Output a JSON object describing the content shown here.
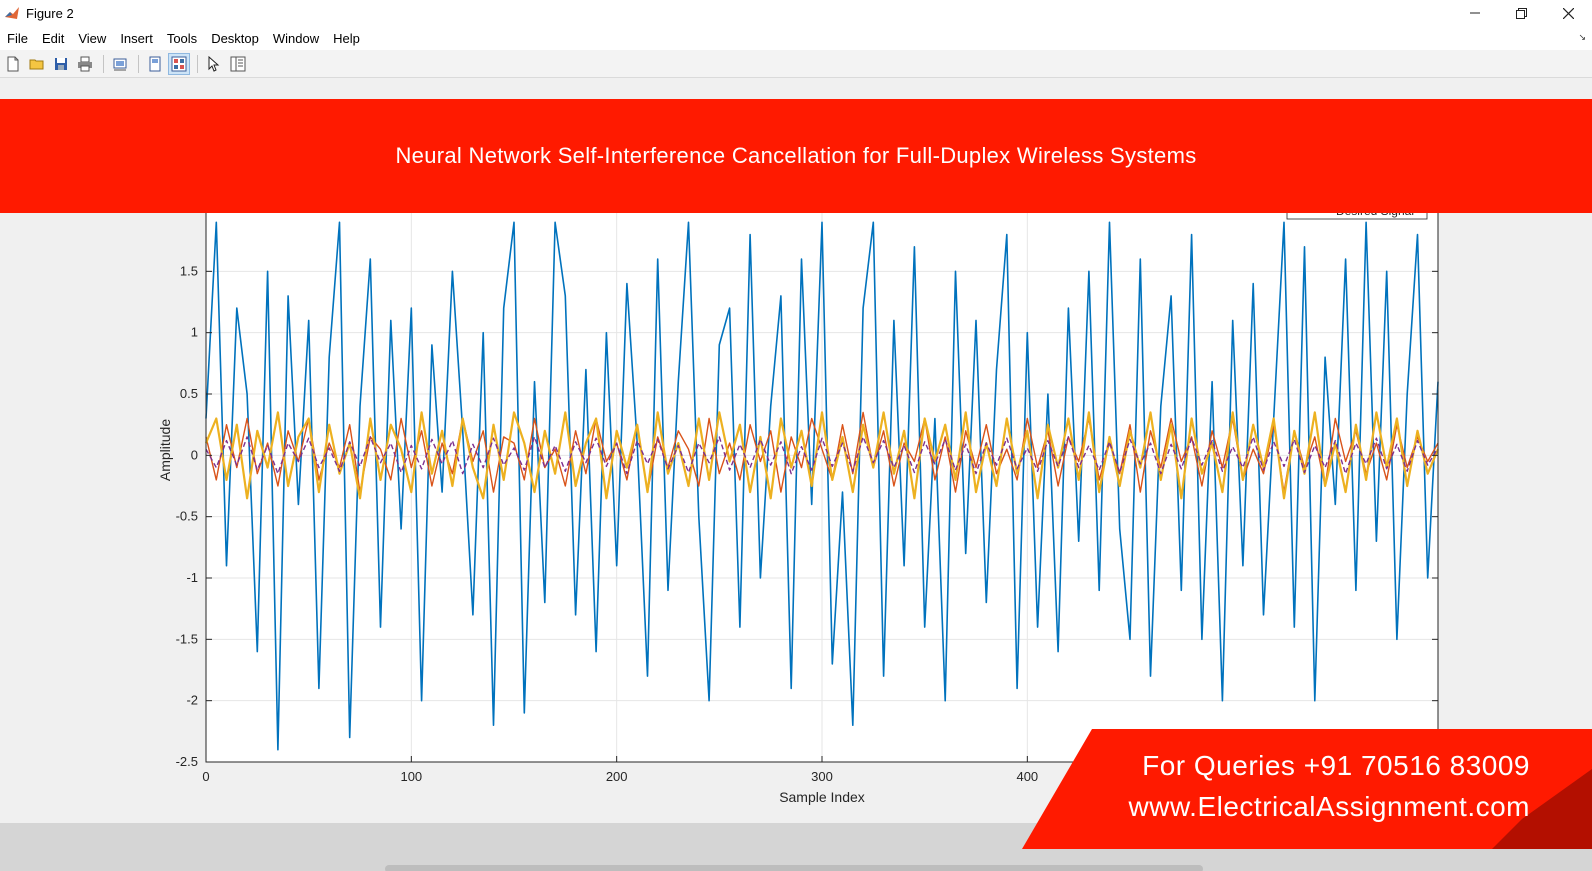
{
  "window": {
    "title": "Figure 2"
  },
  "menu": [
    "File",
    "Edit",
    "View",
    "Insert",
    "Tools",
    "Desktop",
    "Window",
    "Help"
  ],
  "toolbar": [
    "new-figure",
    "open-file",
    "save",
    "print",
    "print-preview",
    "dock-figure",
    "property-inspector",
    "edit-plot-arrow",
    "plot-browser"
  ],
  "banner": {
    "title": "Neural Network Self-Interference Cancellation for Full-Duplex Wireless Systems"
  },
  "legend": {
    "visible_entry": "Desired Signal"
  },
  "contact": {
    "phone": "For Queries +91 70516 83009",
    "website": "www.ElectricalAssignment.com"
  },
  "colors": {
    "banner": "#ff1a00",
    "series1": "#0072bd",
    "series2": "#d95319",
    "series3": "#edb120",
    "series4": "#7e2f8e"
  },
  "chart_data": {
    "type": "line",
    "title": "",
    "xlabel": "Sample Index",
    "ylabel": "Amplitude",
    "xlim": [
      0,
      600
    ],
    "ylim": [
      -2.5,
      2
    ],
    "xticks": [
      0,
      100,
      200,
      300,
      400
    ],
    "yticks": [
      -2.5,
      -2,
      -1.5,
      -1,
      -0.5,
      0,
      0.5,
      1,
      1.5
    ],
    "x": [
      0,
      5,
      10,
      15,
      20,
      25,
      30,
      35,
      40,
      45,
      50,
      55,
      60,
      65,
      70,
      75,
      80,
      85,
      90,
      95,
      100,
      105,
      110,
      115,
      120,
      125,
      130,
      135,
      140,
      145,
      150,
      155,
      160,
      165,
      170,
      175,
      180,
      185,
      190,
      195,
      200,
      205,
      210,
      215,
      220,
      225,
      230,
      235,
      240,
      245,
      250,
      255,
      260,
      265,
      270,
      275,
      280,
      285,
      290,
      295,
      300,
      305,
      310,
      315,
      320,
      325,
      330,
      335,
      340,
      345,
      350,
      355,
      360,
      365,
      370,
      375,
      380,
      385,
      390,
      395,
      400,
      405,
      410,
      415,
      420,
      425,
      430,
      435,
      440,
      445,
      450,
      455,
      460,
      465,
      470,
      475,
      480,
      485,
      490,
      495,
      500,
      505,
      510,
      515,
      520,
      525,
      530,
      535,
      540,
      545,
      550,
      555,
      560,
      565,
      570,
      575,
      580,
      585,
      590,
      595,
      600
    ],
    "series": [
      {
        "name": "Desired Signal",
        "values": [
          0.3,
          1.9,
          -0.9,
          1.2,
          0.5,
          -1.6,
          1.5,
          -2.4,
          1.3,
          -0.4,
          1.1,
          -1.9,
          0.8,
          1.9,
          -2.3,
          0.4,
          1.6,
          -1.4,
          1.1,
          -0.6,
          1.2,
          -2.0,
          0.9,
          -0.3,
          1.5,
          0.2,
          -1.3,
          1.0,
          -2.2,
          1.2,
          1.9,
          -2.1,
          0.6,
          -1.2,
          1.9,
          1.3,
          -1.3,
          0.7,
          -1.6,
          1.0,
          -0.9,
          1.4,
          0.1,
          -1.8,
          1.6,
          -1.1,
          0.6,
          1.9,
          -0.5,
          -2.0,
          0.9,
          1.2,
          -1.4,
          1.8,
          -1.0,
          0.4,
          1.3,
          -1.9,
          1.6,
          -0.4,
          1.9,
          -1.7,
          -0.3,
          -2.2,
          1.2,
          1.9,
          -1.8,
          1.1,
          -0.9,
          1.7,
          -1.4,
          0.3,
          -2.0,
          1.5,
          -0.8,
          1.1,
          -1.2,
          0.7,
          1.8,
          -1.9,
          1.0,
          -1.4,
          0.5,
          -1.6,
          1.2,
          -0.7,
          1.5,
          -1.1,
          1.9,
          -0.6,
          -1.5,
          1.6,
          -1.8,
          0.4,
          1.3,
          -1.1,
          1.8,
          -1.5,
          0.6,
          -2.0,
          1.1,
          -0.9,
          1.4,
          -1.3,
          0.3,
          1.9,
          -1.4,
          1.7,
          -2.0,
          0.8,
          -0.4,
          1.6,
          -1.1,
          1.9,
          -0.7,
          1.5,
          -1.5,
          0.5,
          1.8,
          -1.0,
          0.6
        ]
      },
      {
        "name": "",
        "values": [
          0.15,
          -0.2,
          0.25,
          -0.1,
          0.3,
          -0.15,
          0.1,
          -0.25,
          0.2,
          -0.05,
          0.3,
          -0.2,
          0.1,
          -0.1,
          0.25,
          -0.3,
          0.15,
          0.05,
          -0.2,
          0.3,
          -0.1,
          0.2,
          -0.25,
          0.1,
          -0.15,
          0.3,
          -0.05,
          0.2,
          -0.3,
          0.15,
          0.1,
          -0.2,
          0.3,
          -0.1,
          0.05,
          -0.25,
          0.2,
          -0.15,
          0.3,
          -0.05,
          0.1,
          -0.2,
          0.25,
          -0.3,
          0.15,
          -0.1,
          0.2,
          0.05,
          -0.25,
          0.3,
          -0.15,
          0.1,
          -0.2,
          0.25,
          -0.05,
          0.2,
          -0.3,
          0.15,
          -0.1,
          0.3,
          0.05,
          -0.2,
          0.25,
          -0.15,
          0.35,
          -0.1,
          0.2,
          -0.25,
          0.1,
          -0.05,
          0.3,
          -0.2,
          0.15,
          -0.3,
          0.2,
          -0.1,
          0.25,
          -0.15,
          0.05,
          -0.2,
          0.3,
          -0.1,
          0.2,
          -0.25,
          0.15,
          -0.05,
          0.3,
          -0.2,
          0.1,
          -0.15,
          0.25,
          -0.3,
          0.2,
          -0.1,
          0.3,
          -0.05,
          0.15,
          -0.25,
          0.2,
          -0.1,
          0.3,
          -0.2,
          0.05,
          -0.15,
          0.25,
          -0.3,
          0.2,
          -0.1,
          0.15,
          -0.25,
          0.3,
          -0.05,
          0.2,
          -0.15,
          0.1,
          -0.2,
          0.25,
          -0.1,
          0.15,
          -0.05,
          0.1
        ]
      },
      {
        "name": "",
        "values": [
          0.1,
          0.3,
          -0.2,
          0.25,
          -0.35,
          0.2,
          -0.1,
          0.35,
          -0.25,
          0.15,
          0.3,
          -0.3,
          0.25,
          -0.15,
          0.1,
          -0.35,
          0.3,
          -0.2,
          0.25,
          0.05,
          -0.3,
          0.35,
          -0.15,
          0.2,
          -0.25,
          0.3,
          -0.1,
          -0.35,
          0.25,
          -0.2,
          0.35,
          0.1,
          -0.3,
          0.2,
          -0.15,
          0.35,
          -0.25,
          0.1,
          0.3,
          -0.35,
          0.2,
          -0.1,
          0.25,
          -0.3,
          0.35,
          -0.15,
          0.1,
          -0.25,
          0.3,
          -0.2,
          0.35,
          -0.05,
          0.25,
          -0.3,
          0.15,
          -0.35,
          0.3,
          -0.1,
          0.2,
          -0.25,
          0.35,
          -0.2,
          0.15,
          -0.3,
          0.25,
          -0.1,
          0.35,
          -0.15,
          0.2,
          -0.35,
          0.3,
          -0.05,
          0.25,
          -0.2,
          0.35,
          -0.3,
          0.1,
          -0.25,
          0.3,
          -0.15,
          0.2,
          -0.35,
          0.25,
          -0.1,
          0.3,
          -0.2,
          0.35,
          -0.3,
          0.15,
          -0.25,
          0.2,
          -0.1,
          0.35,
          -0.2,
          0.25,
          -0.35,
          0.3,
          -0.15,
          0.1,
          -0.3,
          0.35,
          -0.2,
          0.25,
          -0.1,
          0.3,
          -0.35,
          0.2,
          -0.15,
          0.35,
          -0.25,
          0.1,
          -0.3,
          0.25,
          -0.2,
          0.35,
          -0.1,
          0.3,
          -0.25,
          0.2,
          -0.15,
          0.05
        ]
      },
      {
        "name": "",
        "values": [
          0.05,
          -0.1,
          0.12,
          -0.08,
          0.15,
          -0.12,
          0.08,
          -0.15,
          0.1,
          -0.05,
          0.14,
          -0.1,
          0.06,
          -0.13,
          0.11,
          -0.09,
          0.15,
          -0.06,
          0.1,
          -0.14,
          0.08,
          -0.11,
          0.13,
          -0.07,
          0.12,
          -0.15,
          0.09,
          -0.1,
          0.14,
          -0.08,
          0.06,
          -0.12,
          0.15,
          -0.1,
          0.08,
          -0.13,
          0.11,
          -0.06,
          0.14,
          -0.09,
          0.1,
          -0.15,
          0.12,
          -0.07,
          0.13,
          -0.11,
          0.08,
          -0.14,
          0.1,
          -0.06,
          0.15,
          -0.12,
          0.09,
          -0.1,
          0.13,
          -0.08,
          0.11,
          -0.15,
          0.07,
          -0.12,
          0.14,
          -0.09,
          0.1,
          -0.13,
          0.15,
          -0.06,
          0.12,
          -0.1,
          0.08,
          -0.14,
          0.11,
          -0.07,
          0.13,
          -0.12,
          0.09,
          -0.15,
          0.1,
          -0.08,
          0.14,
          -0.11,
          0.06,
          -0.13,
          0.12,
          -0.09,
          0.15,
          -0.1,
          0.08,
          -0.12,
          0.11,
          -0.14,
          0.13,
          -0.07,
          0.1,
          -0.15,
          0.09,
          -0.11,
          0.14,
          -0.08,
          0.12,
          -0.13,
          0.07,
          -0.1,
          0.15,
          -0.12,
          0.11,
          -0.09,
          0.13,
          -0.14,
          0.08,
          -0.1,
          0.12,
          -0.15,
          0.1,
          -0.07,
          0.14,
          -0.11,
          0.09,
          -0.13,
          0.12,
          -0.08,
          0.06
        ]
      }
    ],
    "grid": true,
    "legend_position": "top-right"
  }
}
